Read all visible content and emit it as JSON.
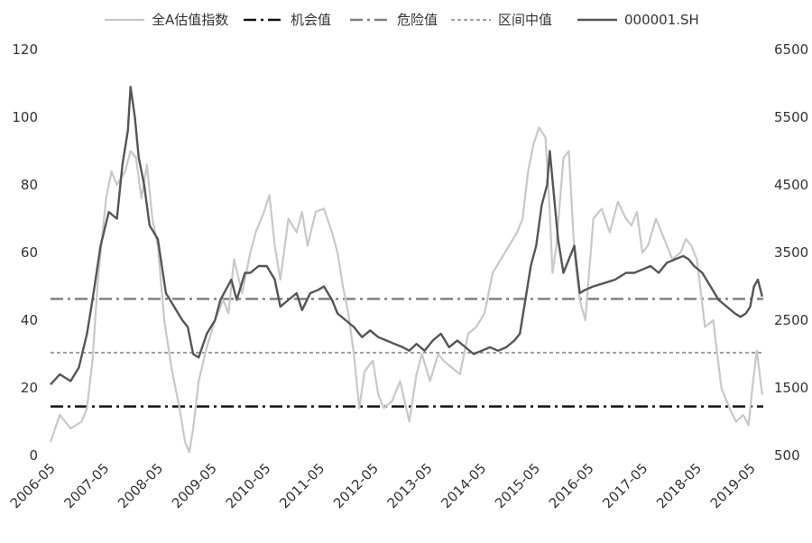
{
  "chart_data": {
    "type": "line",
    "title": "",
    "xlabel": "",
    "ylabel": "",
    "x_categories": [
      "2006-05",
      "2007-05",
      "2008-05",
      "2009-05",
      "2010-05",
      "2011-05",
      "2012-05",
      "2013-05",
      "2014-05",
      "2015-05",
      "2016-05",
      "2017-05",
      "2018-05",
      "2019-05"
    ],
    "y_left": {
      "min": 0,
      "max": 120,
      "ticks": [
        0,
        20,
        40,
        60,
        80,
        100,
        120
      ]
    },
    "y_right": {
      "min": 500,
      "max": 6500,
      "ticks": [
        500,
        1500,
        2500,
        3500,
        4500,
        5500,
        6500
      ]
    },
    "legend": {
      "position": "top",
      "items": [
        {
          "label": "全A估值指数",
          "color": "#c8c8c8",
          "dash": "solid"
        },
        {
          "label": "机会值",
          "color": "#111111",
          "dash": "dash-dot"
        },
        {
          "label": "危险值",
          "color": "#808080",
          "dash": "dash-dot"
        },
        {
          "label": "区间中值",
          "color": "#808080",
          "dash": "dotted"
        },
        {
          "label": "000001.SH",
          "color": "#555555",
          "dash": "solid"
        }
      ]
    },
    "reference_lines": [
      {
        "name": "机会值",
        "axis": "left",
        "value": 14.5
      },
      {
        "name": "危险值",
        "axis": "left",
        "value": 46.3
      },
      {
        "name": "区间中值",
        "axis": "left",
        "value": 30.4
      }
    ],
    "series": [
      {
        "name": "全A估值指数",
        "axis": "left",
        "x": [
          2006.33,
          2006.5,
          2006.7,
          2006.9,
          2007.0,
          2007.1,
          2007.2,
          2007.35,
          2007.45,
          2007.55,
          2007.7,
          2007.8,
          2007.9,
          2008.0,
          2008.1,
          2008.2,
          2008.3,
          2008.42,
          2008.55,
          2008.7,
          2008.8,
          2008.88,
          2008.95,
          2009.05,
          2009.2,
          2009.35,
          2009.5,
          2009.6,
          2009.7,
          2009.85,
          2010.0,
          2010.1,
          2010.25,
          2010.35,
          2010.45,
          2010.55,
          2010.7,
          2010.85,
          2010.95,
          2011.05,
          2011.2,
          2011.35,
          2011.5,
          2011.6,
          2011.7,
          2011.8,
          2011.9,
          2012.0,
          2012.1,
          2012.25,
          2012.35,
          2012.45,
          2012.6,
          2012.75,
          2012.92,
          2013.05,
          2013.15,
          2013.3,
          2013.45,
          2013.55,
          2013.7,
          2013.85,
          2014.0,
          2014.15,
          2014.3,
          2014.45,
          2014.6,
          2014.75,
          2014.9,
          2015.0,
          2015.1,
          2015.2,
          2015.3,
          2015.42,
          2015.5,
          2015.55,
          2015.62,
          2015.75,
          2015.85,
          2015.95,
          2016.05,
          2016.15,
          2016.3,
          2016.45,
          2016.6,
          2016.75,
          2016.9,
          2017.0,
          2017.1,
          2017.2,
          2017.3,
          2017.45,
          2017.6,
          2017.75,
          2017.9,
          2018.0,
          2018.1,
          2018.2,
          2018.35,
          2018.5,
          2018.65,
          2018.8,
          2018.92,
          2019.05,
          2019.15,
          2019.22,
          2019.3,
          2019.4
        ],
        "values": [
          4,
          12,
          8,
          10,
          14,
          28,
          52,
          76,
          84,
          80,
          84,
          90,
          88,
          76,
          86,
          70,
          62,
          40,
          26,
          14,
          4,
          1,
          8,
          22,
          32,
          40,
          46,
          42,
          58,
          48,
          60,
          66,
          72,
          77,
          62,
          52,
          70,
          66,
          72,
          62,
          72,
          73,
          66,
          60,
          50,
          42,
          30,
          14,
          25,
          28,
          18,
          14,
          16,
          22,
          10,
          24,
          30,
          22,
          30,
          28,
          26,
          24,
          36,
          38,
          42,
          54,
          58,
          62,
          66,
          70,
          84,
          92,
          97,
          94,
          72,
          54,
          62,
          88,
          90,
          60,
          46,
          40,
          70,
          73,
          66,
          75,
          70,
          68,
          72,
          60,
          62,
          70,
          64,
          58,
          60,
          64,
          62,
          58,
          38,
          40,
          20,
          14,
          10,
          12,
          9,
          20,
          31,
          18
        ]
      },
      {
        "name": "000001.SH",
        "axis": "right",
        "x": [
          2006.33,
          2006.5,
          2006.7,
          2006.85,
          2007.0,
          2007.1,
          2007.25,
          2007.4,
          2007.55,
          2007.65,
          2007.75,
          2007.8,
          2007.88,
          2007.95,
          2008.05,
          2008.15,
          2008.3,
          2008.45,
          2008.6,
          2008.75,
          2008.85,
          2008.95,
          2009.05,
          2009.2,
          2009.35,
          2009.45,
          2009.55,
          2009.65,
          2009.75,
          2009.9,
          2010.0,
          2010.15,
          2010.3,
          2010.45,
          2010.55,
          2010.7,
          2010.85,
          2010.95,
          2011.1,
          2011.25,
          2011.35,
          2011.5,
          2011.6,
          2011.75,
          2011.9,
          2012.05,
          2012.2,
          2012.35,
          2012.5,
          2012.65,
          2012.8,
          2012.92,
          2013.05,
          2013.2,
          2013.35,
          2013.5,
          2013.65,
          2013.8,
          2013.95,
          2014.1,
          2014.25,
          2014.4,
          2014.55,
          2014.7,
          2014.85,
          2014.95,
          2015.05,
          2015.15,
          2015.25,
          2015.35,
          2015.45,
          2015.5,
          2015.58,
          2015.65,
          2015.75,
          2015.85,
          2015.95,
          2016.05,
          2016.15,
          2016.3,
          2016.5,
          2016.7,
          2016.9,
          2017.05,
          2017.2,
          2017.35,
          2017.5,
          2017.65,
          2017.8,
          2017.95,
          2018.05,
          2018.15,
          2018.3,
          2018.45,
          2018.6,
          2018.75,
          2018.9,
          2019.0,
          2019.1,
          2019.18,
          2019.25,
          2019.32,
          2019.4
        ],
        "values": [
          1550,
          1700,
          1600,
          1800,
          2300,
          2800,
          3600,
          4100,
          4000,
          4800,
          5300,
          5950,
          5500,
          4900,
          4500,
          3900,
          3700,
          2900,
          2700,
          2500,
          2400,
          2000,
          1950,
          2300,
          2500,
          2800,
          2950,
          3100,
          2800,
          3200,
          3200,
          3300,
          3300,
          3100,
          2700,
          2800,
          2900,
          2650,
          2900,
          2950,
          3000,
          2800,
          2600,
          2500,
          2400,
          2250,
          2350,
          2250,
          2200,
          2150,
          2100,
          2050,
          2150,
          2050,
          2200,
          2300,
          2100,
          2200,
          2100,
          2000,
          2050,
          2100,
          2050,
          2100,
          2200,
          2300,
          2800,
          3300,
          3600,
          4200,
          4500,
          5000,
          4300,
          3700,
          3200,
          3400,
          3600,
          2900,
          2950,
          3000,
          3050,
          3100,
          3200,
          3200,
          3250,
          3300,
          3200,
          3350,
          3400,
          3450,
          3400,
          3300,
          3200,
          3000,
          2800,
          2700,
          2600,
          2550,
          2600,
          2700,
          3000,
          3100,
          2850
        ]
      }
    ]
  }
}
